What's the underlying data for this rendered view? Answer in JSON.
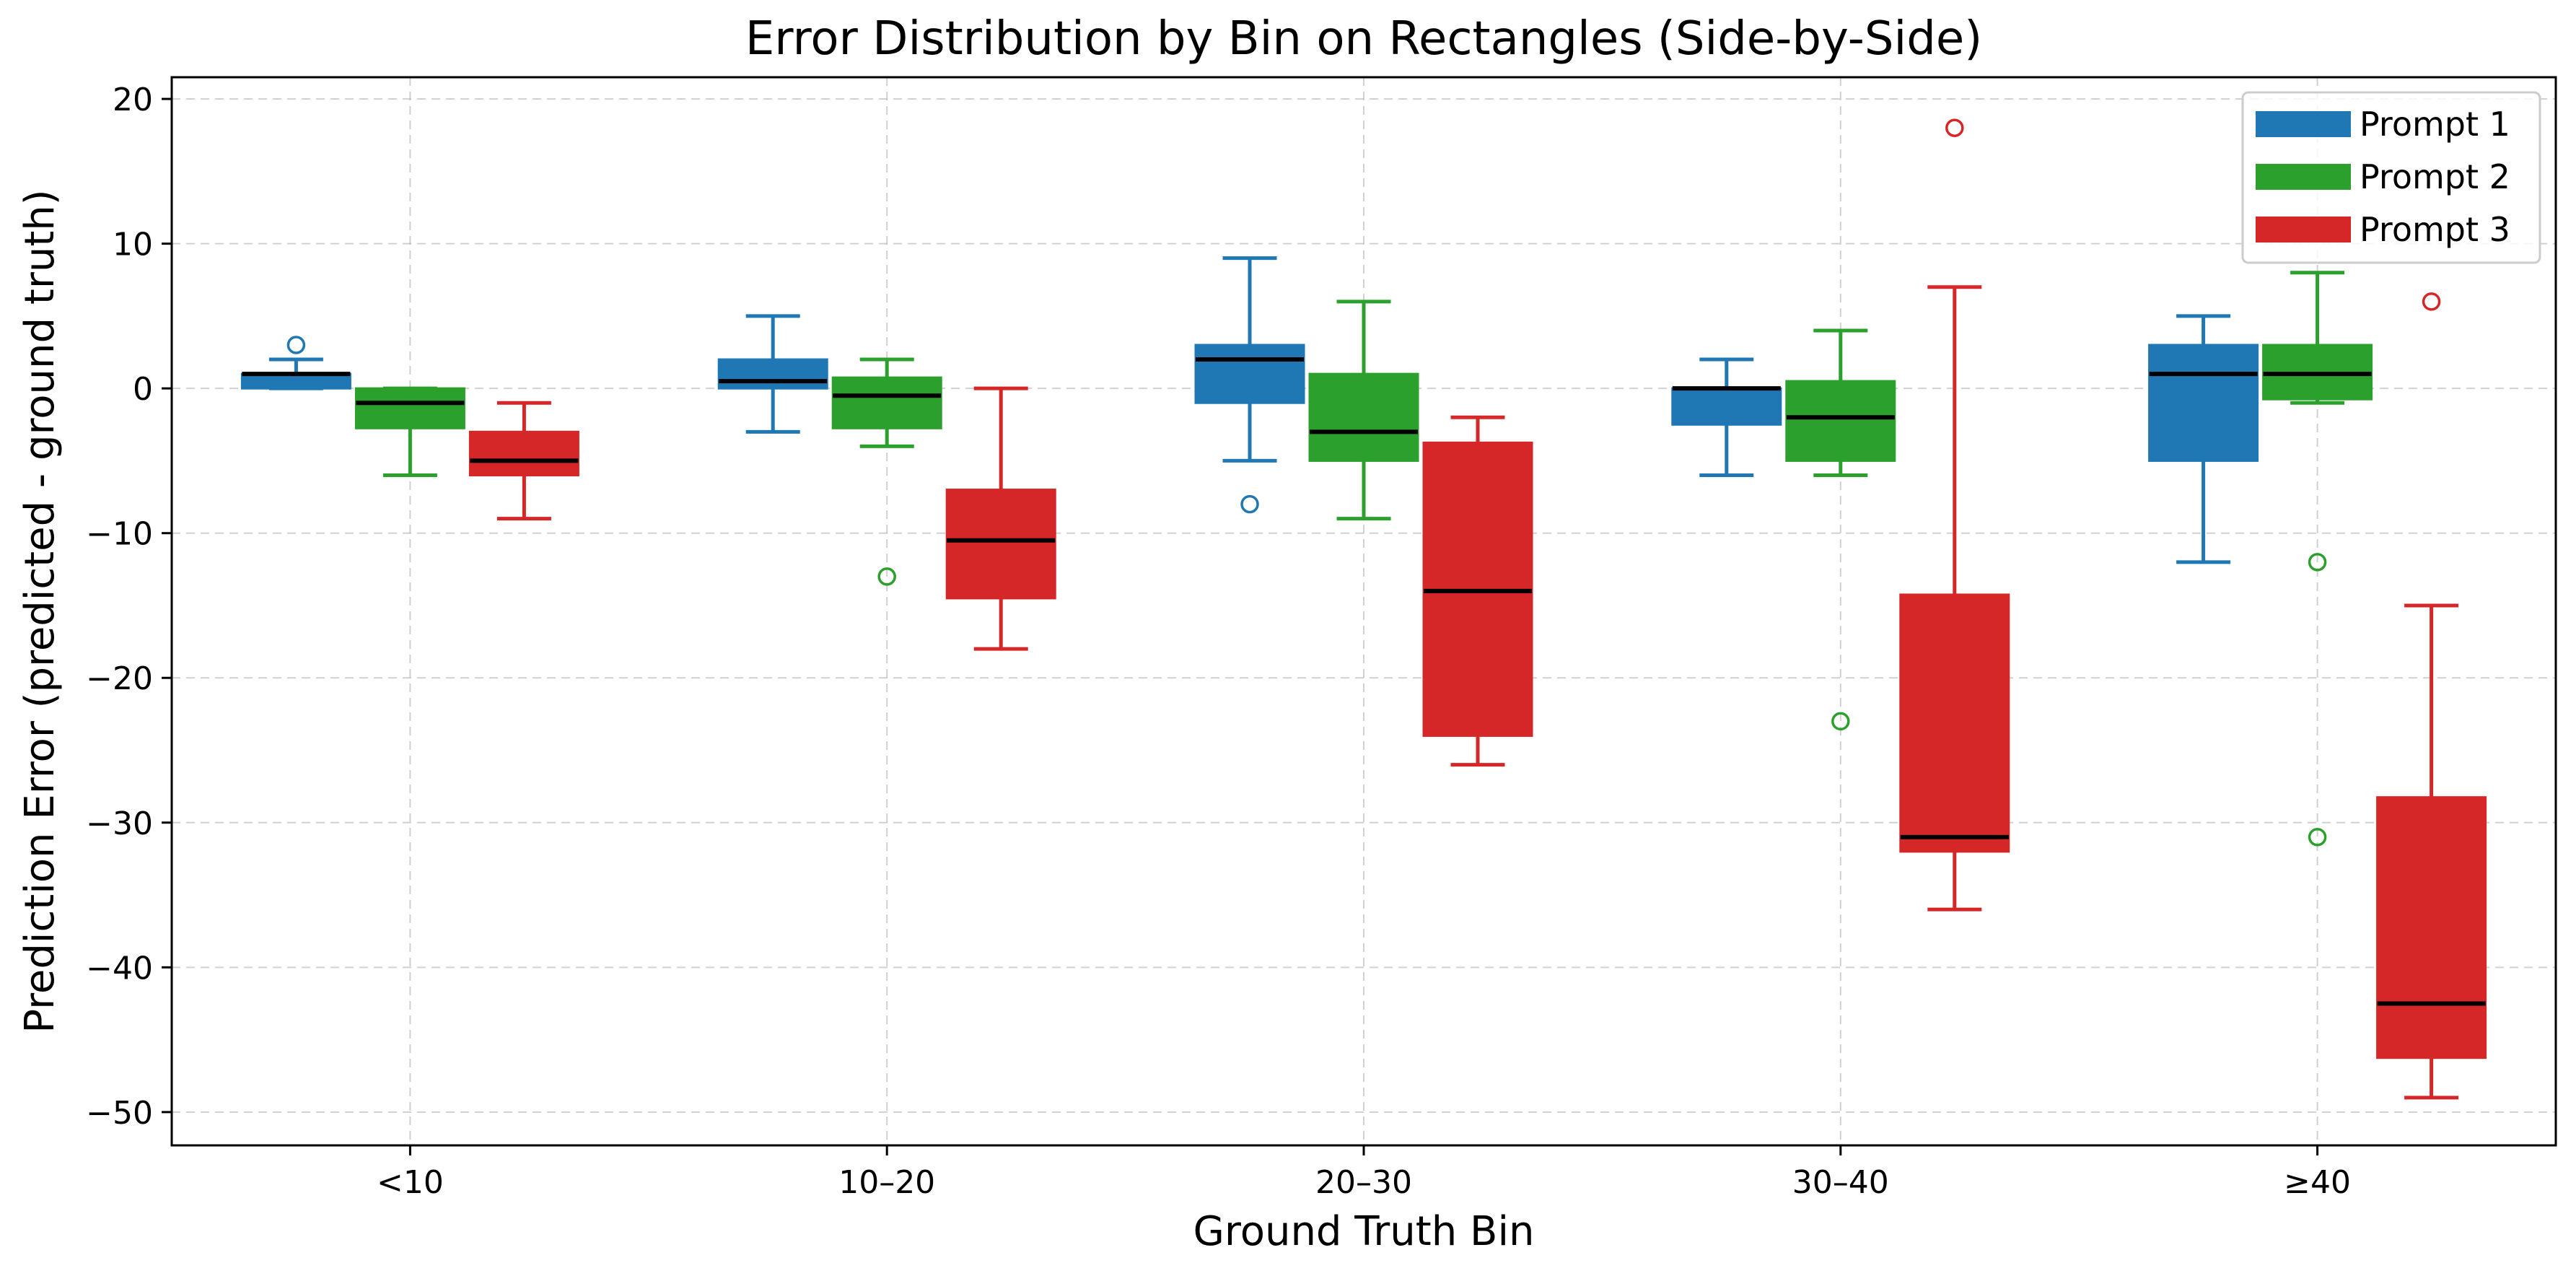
{
  "chart_data": {
    "type": "box",
    "title": "Error Distribution by Bin on Rectangles (Side-by-Side)",
    "xlabel": "Ground Truth Bin",
    "ylabel": "Prediction Error (predicted - ground truth)",
    "categories": [
      "<10",
      "10–20",
      "20–30",
      "30–40",
      "≥40"
    ],
    "ylim": [
      -52.3,
      21.5
    ],
    "yticks": [
      20,
      10,
      0,
      -10,
      -20,
      -30,
      -40,
      -50
    ],
    "ytick_labels": [
      "20",
      "10",
      "0",
      "−10",
      "−20",
      "−30",
      "−40",
      "−50"
    ],
    "grid": true,
    "legend_position": "top-right",
    "series": [
      {
        "name": "Prompt 1",
        "color": "#1f77b4",
        "boxes": [
          {
            "whislo": 0,
            "q1": 0,
            "med": 1,
            "q3": 1,
            "whishi": 2,
            "fliers": [
              3
            ]
          },
          {
            "whislo": -3,
            "q1": 0,
            "med": 0.5,
            "q3": 2,
            "whishi": 5,
            "fliers": []
          },
          {
            "whislo": -5,
            "q1": -1,
            "med": 2,
            "q3": 3,
            "whishi": 9,
            "fliers": [
              -8
            ]
          },
          {
            "whislo": -6,
            "q1": -2.5,
            "med": 0,
            "q3": 0,
            "whishi": 2,
            "fliers": []
          },
          {
            "whislo": -12,
            "q1": -5,
            "med": 1,
            "q3": 3,
            "whishi": 5,
            "fliers": []
          }
        ]
      },
      {
        "name": "Prompt 2",
        "color": "#2ca02c",
        "boxes": [
          {
            "whislo": -6,
            "q1": -2.75,
            "med": -1,
            "q3": 0,
            "whishi": 0,
            "fliers": []
          },
          {
            "whislo": -4,
            "q1": -2.75,
            "med": -0.5,
            "q3": 0.75,
            "whishi": 2,
            "fliers": [
              -13
            ]
          },
          {
            "whislo": -9,
            "q1": -5,
            "med": -3,
            "q3": 1,
            "whishi": 6,
            "fliers": []
          },
          {
            "whislo": -6,
            "q1": -5,
            "med": -2,
            "q3": 0.5,
            "whishi": 4,
            "fliers": [
              -23
            ]
          },
          {
            "whislo": -1,
            "q1": -0.75,
            "med": 1,
            "q3": 3,
            "whishi": 8,
            "fliers": [
              -12,
              -31
            ]
          }
        ]
      },
      {
        "name": "Prompt 3",
        "color": "#d62728",
        "boxes": [
          {
            "whislo": -9,
            "q1": -6,
            "med": -5,
            "q3": -3,
            "whishi": -1,
            "fliers": []
          },
          {
            "whislo": -18,
            "q1": -14.5,
            "med": -10.5,
            "q3": -7,
            "whishi": 0,
            "fliers": []
          },
          {
            "whislo": -26,
            "q1": -24,
            "med": -14,
            "q3": -3.75,
            "whishi": -2,
            "fliers": []
          },
          {
            "whislo": -36,
            "q1": -32,
            "med": -31,
            "q3": -14.25,
            "whishi": 7,
            "fliers": [
              18
            ]
          },
          {
            "whislo": -49,
            "q1": -46.25,
            "med": -42.5,
            "q3": -28.25,
            "whishi": -15,
            "fliers": [
              6
            ]
          }
        ]
      }
    ]
  }
}
